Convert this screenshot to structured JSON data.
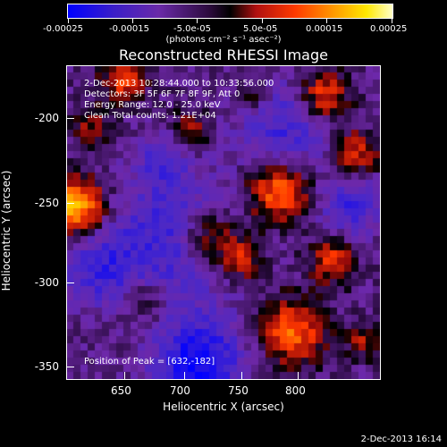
{
  "colorbar": {
    "gradient": [
      "#0000ff",
      "#6a2aa8",
      "#000000",
      "#ff3a00",
      "#ffe800",
      "#ffffff"
    ],
    "tick_labels": [
      "-0.00025",
      "-0.00015",
      "-5.0e-05",
      "5.0e-05",
      "0.00015",
      "0.00025"
    ],
    "unit": "(photons cm⁻² s⁻¹ asec⁻²)"
  },
  "title": "Reconstructed RHESSI Image",
  "annotations": [
    "2-Dec-2013 10:28:44.000 to 10:33:56.000",
    "Detectors: 3F 5F 6F 7F 8F 9F, Att 0",
    "Energy Range: 12.0 - 25.0 keV",
    "Clean     Total counts: 1.21E+04"
  ],
  "peak_text": "Position of Peak = [632,-182]",
  "x_axis": {
    "label": "Heliocentric X (arcsec)",
    "ticks": [
      "650",
      "700",
      "750",
      "800"
    ]
  },
  "y_axis": {
    "label": "Heliocentric Y (arcsec)",
    "ticks": [
      "-200",
      "-250",
      "-300",
      "-350"
    ]
  },
  "timestamp": "2-Dec-2013 16:14"
}
